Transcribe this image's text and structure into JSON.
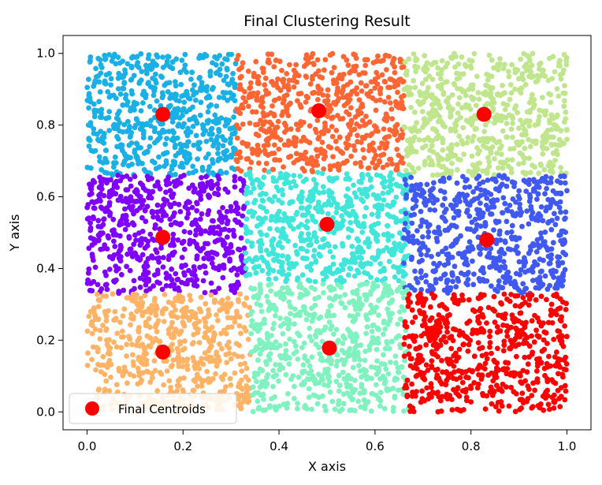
{
  "chart_data": {
    "type": "scatter",
    "title": "Final Clustering Result",
    "xlabel": "X axis",
    "ylabel": "Y axis",
    "xlim": [
      -0.05,
      1.05
    ],
    "ylim": [
      -0.05,
      1.05
    ],
    "xticks": [
      0.0,
      0.2,
      0.4,
      0.6,
      0.8,
      1.0
    ],
    "xtick_labels": [
      "0.0",
      "0.2",
      "0.4",
      "0.6",
      "0.8",
      "1.0"
    ],
    "yticks": [
      0.0,
      0.2,
      0.4,
      0.6,
      0.8,
      1.0
    ],
    "ytick_labels": [
      "0.0",
      "0.2",
      "0.4",
      "0.6",
      "0.8",
      "1.0"
    ],
    "grid": false,
    "legend": {
      "position": "lower-left",
      "label": "Final Centroids",
      "color": "#ff0000"
    },
    "points_per_cluster": 600,
    "clusters": [
      {
        "name": "cluster-top-left",
        "color": "#1ab0e6",
        "x_range": [
          0.0,
          0.31
        ],
        "y_range": [
          0.66,
          1.0
        ],
        "centroid": [
          0.158,
          0.83
        ]
      },
      {
        "name": "cluster-top-middle",
        "color": "#ff6633",
        "x_range": [
          0.31,
          0.66
        ],
        "y_range": [
          0.67,
          1.0
        ],
        "centroid": [
          0.483,
          0.84
        ]
      },
      {
        "name": "cluster-top-right",
        "color": "#bfe68c",
        "x_range": [
          0.66,
          1.0
        ],
        "y_range": [
          0.66,
          1.0
        ],
        "centroid": [
          0.827,
          0.83
        ]
      },
      {
        "name": "cluster-middle-left",
        "color": "#7f00ff",
        "x_range": [
          0.0,
          0.33
        ],
        "y_range": [
          0.33,
          0.66
        ],
        "centroid": [
          0.158,
          0.487
        ]
      },
      {
        "name": "cluster-center",
        "color": "#40e6d9",
        "x_range": [
          0.33,
          0.67
        ],
        "y_range": [
          0.36,
          0.67
        ],
        "centroid": [
          0.5,
          0.523
        ]
      },
      {
        "name": "cluster-middle-right",
        "color": "#4059f2",
        "x_range": [
          0.66,
          1.0
        ],
        "y_range": [
          0.33,
          0.66
        ],
        "centroid": [
          0.833,
          0.48
        ]
      },
      {
        "name": "cluster-bottom-left",
        "color": "#ffb366",
        "x_range": [
          0.0,
          0.34
        ],
        "y_range": [
          0.0,
          0.33
        ],
        "centroid": [
          0.158,
          0.167
        ]
      },
      {
        "name": "cluster-bottom-middle",
        "color": "#80f2bf",
        "x_range": [
          0.34,
          0.67
        ],
        "y_range": [
          0.0,
          0.36
        ],
        "centroid": [
          0.505,
          0.178
        ]
      },
      {
        "name": "cluster-bottom-right",
        "color": "#ff0000",
        "x_range": [
          0.66,
          1.0
        ],
        "y_range": [
          0.0,
          0.33
        ],
        "centroid": [
          0.72,
          0.22
        ]
      }
    ]
  }
}
